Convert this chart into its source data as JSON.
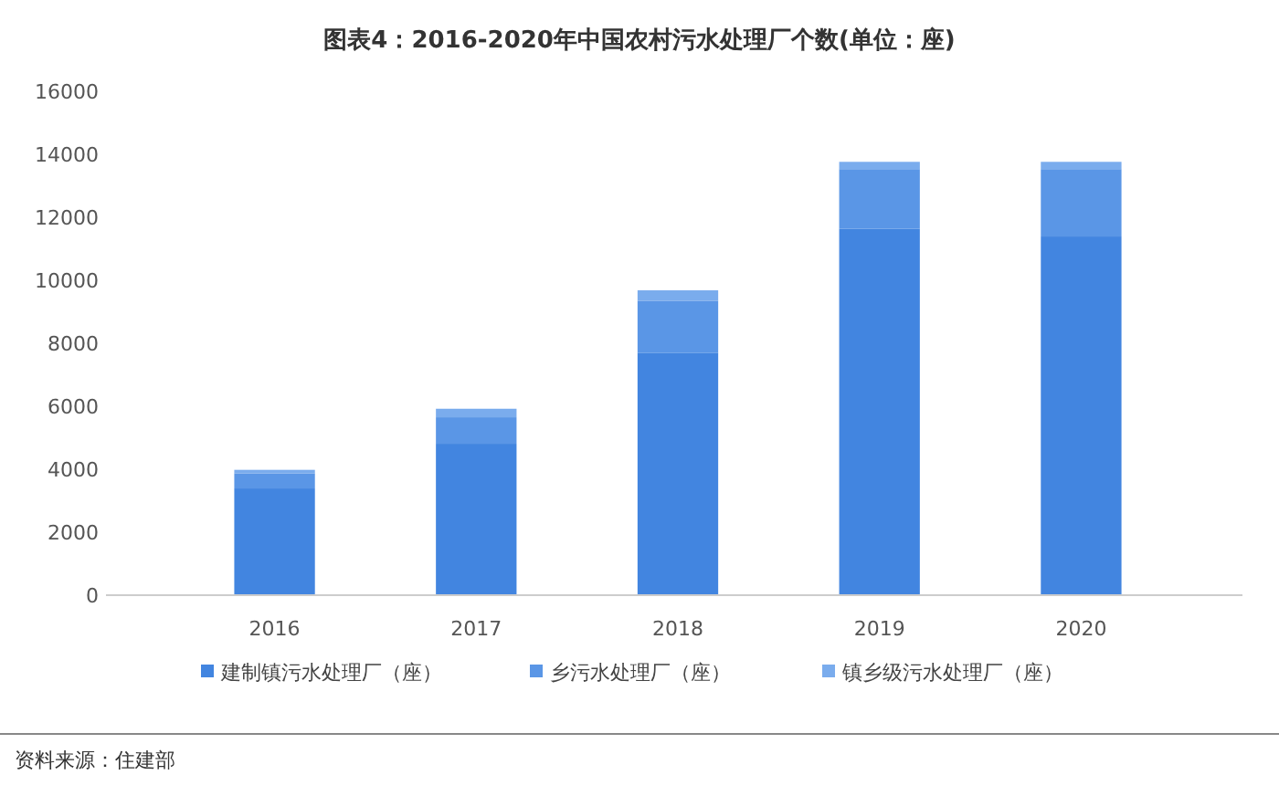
{
  "chart_data": {
    "type": "bar",
    "title": "图表4：2016-2020年中国农村污水处理厂个数(单位：座)",
    "categories": [
      "2016",
      "2017",
      "2018",
      "2019",
      "2020"
    ],
    "stacked": true,
    "series": [
      {
        "name": "建制镇污水处理厂（座）",
        "color": "#4285e0",
        "values": [
          3390,
          4810,
          7700,
          11640,
          11390
        ]
      },
      {
        "name": "乡污水处理厂（座）",
        "color": "#5a96e6",
        "values": [
          480,
          840,
          1650,
          1890,
          2140
        ]
      },
      {
        "name": "镇乡级污水处理厂（座）",
        "color": "#7aaced",
        "values": [
          110,
          270,
          330,
          230,
          230
        ]
      }
    ],
    "ylim": [
      0,
      16000
    ],
    "yticks": [
      0,
      2000,
      4000,
      6000,
      8000,
      10000,
      12000,
      14000,
      16000
    ],
    "legend": "bottom",
    "annotations": [
      "资料来源：住建部"
    ]
  }
}
